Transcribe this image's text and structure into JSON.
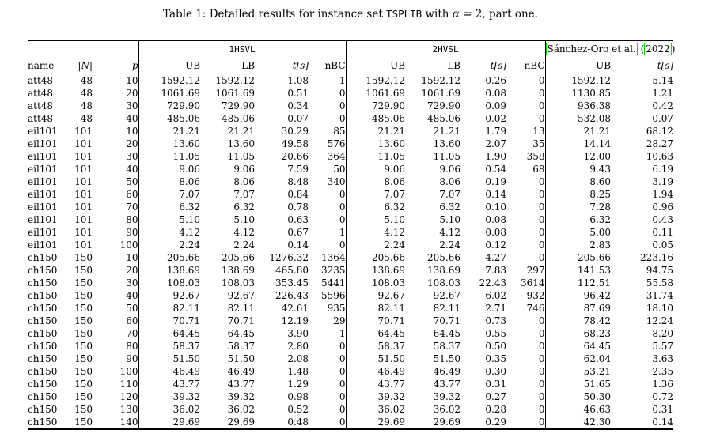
{
  "colors": {
    "link_box": "#00dd00",
    "text": "#000000",
    "background": "#ffffff"
  },
  "caption": {
    "prefix": "Table 1: Detailed results for instance set ",
    "mono": "TSPLIB",
    "mid": " with ",
    "alpha": "α",
    "suffix": " = 2, part one."
  },
  "header": {
    "group1": "1HSVL",
    "group2": "2HVSL",
    "group3": {
      "citation": "Sánchez-Oro et al.",
      "paren_open": "(",
      "year": "2022",
      "paren_close": ")"
    },
    "cols": {
      "name": "name",
      "n": "|N|",
      "p": "p",
      "ub": "UB",
      "lb": "LB",
      "t": "t[s]",
      "nbc": "nBC"
    }
  },
  "rows": [
    {
      "name": "att48",
      "n": "48",
      "p": "10",
      "h1": [
        "1592.12",
        "1592.12",
        "1.08",
        "1"
      ],
      "h2": [
        "1592.12",
        "1592.12",
        "0.26",
        "0"
      ],
      "so": [
        "1592.12",
        "5.14"
      ],
      "so_ub_bold": true
    },
    {
      "name": "att48",
      "n": "48",
      "p": "20",
      "h1": [
        "1061.69",
        "1061.69",
        "0.51",
        "0"
      ],
      "h2": [
        "1061.69",
        "1061.69",
        "0.08",
        "0"
      ],
      "so": [
        "1130.85",
        "1.21"
      ],
      "so_ub_bold": false
    },
    {
      "name": "att48",
      "n": "48",
      "p": "30",
      "h1": [
        "729.90",
        "729.90",
        "0.34",
        "0"
      ],
      "h2": [
        "729.90",
        "729.90",
        "0.09",
        "0"
      ],
      "so": [
        "936.38",
        "0.42"
      ],
      "so_ub_bold": false
    },
    {
      "name": "att48",
      "n": "48",
      "p": "40",
      "h1": [
        "485.06",
        "485.06",
        "0.07",
        "0"
      ],
      "h2": [
        "485.06",
        "485.06",
        "0.02",
        "0"
      ],
      "so": [
        "532.08",
        "0.07"
      ],
      "so_ub_bold": false
    },
    {
      "name": "eil101",
      "n": "101",
      "p": "10",
      "h1": [
        "21.21",
        "21.21",
        "30.29",
        "85"
      ],
      "h2": [
        "21.21",
        "21.21",
        "1.79",
        "13"
      ],
      "so": [
        "21.21",
        "68.12"
      ],
      "so_ub_bold": true
    },
    {
      "name": "eil101",
      "n": "101",
      "p": "20",
      "h1": [
        "13.60",
        "13.60",
        "49.58",
        "576"
      ],
      "h2": [
        "13.60",
        "13.60",
        "2.07",
        "35"
      ],
      "so": [
        "14.14",
        "28.27"
      ],
      "so_ub_bold": false
    },
    {
      "name": "eil101",
      "n": "101",
      "p": "30",
      "h1": [
        "11.05",
        "11.05",
        "20.66",
        "364"
      ],
      "h2": [
        "11.05",
        "11.05",
        "1.90",
        "358"
      ],
      "so": [
        "12.00",
        "10.63"
      ],
      "so_ub_bold": false
    },
    {
      "name": "eil101",
      "n": "101",
      "p": "40",
      "h1": [
        "9.06",
        "9.06",
        "7.59",
        "50"
      ],
      "h2": [
        "9.06",
        "9.06",
        "0.54",
        "68"
      ],
      "so": [
        "9.43",
        "6.19"
      ],
      "so_ub_bold": false
    },
    {
      "name": "eil101",
      "n": "101",
      "p": "50",
      "h1": [
        "8.06",
        "8.06",
        "8.48",
        "340"
      ],
      "h2": [
        "8.06",
        "8.06",
        "0.19",
        "0"
      ],
      "so": [
        "8.60",
        "3.19"
      ],
      "so_ub_bold": false
    },
    {
      "name": "eil101",
      "n": "101",
      "p": "60",
      "h1": [
        "7.07",
        "7.07",
        "0.84",
        "0"
      ],
      "h2": [
        "7.07",
        "7.07",
        "0.14",
        "0"
      ],
      "so": [
        "8.25",
        "1.94"
      ],
      "so_ub_bold": false
    },
    {
      "name": "eil101",
      "n": "101",
      "p": "70",
      "h1": [
        "6.32",
        "6.32",
        "0.78",
        "0"
      ],
      "h2": [
        "6.32",
        "6.32",
        "0.10",
        "0"
      ],
      "so": [
        "7.28",
        "0.96"
      ],
      "so_ub_bold": false
    },
    {
      "name": "eil101",
      "n": "101",
      "p": "80",
      "h1": [
        "5.10",
        "5.10",
        "0.63",
        "0"
      ],
      "h2": [
        "5.10",
        "5.10",
        "0.08",
        "0"
      ],
      "so": [
        "6.32",
        "0.43"
      ],
      "so_ub_bold": false
    },
    {
      "name": "eil101",
      "n": "101",
      "p": "90",
      "h1": [
        "4.12",
        "4.12",
        "0.67",
        "1"
      ],
      "h2": [
        "4.12",
        "4.12",
        "0.08",
        "0"
      ],
      "so": [
        "5.00",
        "0.11"
      ],
      "so_ub_bold": false
    },
    {
      "name": "eil101",
      "n": "101",
      "p": "100",
      "h1": [
        "2.24",
        "2.24",
        "0.14",
        "0"
      ],
      "h2": [
        "2.24",
        "2.24",
        "0.12",
        "0"
      ],
      "so": [
        "2.83",
        "0.05"
      ],
      "so_ub_bold": false
    },
    {
      "name": "ch150",
      "n": "150",
      "p": "10",
      "h1": [
        "205.66",
        "205.66",
        "1276.32",
        "1364"
      ],
      "h2": [
        "205.66",
        "205.66",
        "4.27",
        "0"
      ],
      "so": [
        "205.66",
        "223.16"
      ],
      "so_ub_bold": true
    },
    {
      "name": "ch150",
      "n": "150",
      "p": "20",
      "h1": [
        "138.69",
        "138.69",
        "465.80",
        "3235"
      ],
      "h2": [
        "138.69",
        "138.69",
        "7.83",
        "297"
      ],
      "so": [
        "141.53",
        "94.75"
      ],
      "so_ub_bold": false
    },
    {
      "name": "ch150",
      "n": "150",
      "p": "30",
      "h1": [
        "108.03",
        "108.03",
        "353.45",
        "5441"
      ],
      "h2": [
        "108.03",
        "108.03",
        "22.43",
        "3614"
      ],
      "so": [
        "112.51",
        "55.58"
      ],
      "so_ub_bold": false
    },
    {
      "name": "ch150",
      "n": "150",
      "p": "40",
      "h1": [
        "92.67",
        "92.67",
        "226.43",
        "5596"
      ],
      "h2": [
        "92.67",
        "92.67",
        "6.02",
        "932"
      ],
      "so": [
        "96.42",
        "31.74"
      ],
      "so_ub_bold": false
    },
    {
      "name": "ch150",
      "n": "150",
      "p": "50",
      "h1": [
        "82.11",
        "82.11",
        "42.61",
        "935"
      ],
      "h2": [
        "82.11",
        "82.11",
        "2.71",
        "746"
      ],
      "so": [
        "87.69",
        "18.10"
      ],
      "so_ub_bold": false
    },
    {
      "name": "ch150",
      "n": "150",
      "p": "60",
      "h1": [
        "70.71",
        "70.71",
        "12.19",
        "29"
      ],
      "h2": [
        "70.71",
        "70.71",
        "0.73",
        "0"
      ],
      "so": [
        "78.42",
        "12.24"
      ],
      "so_ub_bold": false
    },
    {
      "name": "ch150",
      "n": "150",
      "p": "70",
      "h1": [
        "64.45",
        "64.45",
        "3.90",
        "1"
      ],
      "h2": [
        "64.45",
        "64.45",
        "0.55",
        "0"
      ],
      "so": [
        "68.23",
        "8.20"
      ],
      "so_ub_bold": false
    },
    {
      "name": "ch150",
      "n": "150",
      "p": "80",
      "h1": [
        "58.37",
        "58.37",
        "2.80",
        "0"
      ],
      "h2": [
        "58.37",
        "58.37",
        "0.50",
        "0"
      ],
      "so": [
        "64.45",
        "5.57"
      ],
      "so_ub_bold": false
    },
    {
      "name": "ch150",
      "n": "150",
      "p": "90",
      "h1": [
        "51.50",
        "51.50",
        "2.08",
        "0"
      ],
      "h2": [
        "51.50",
        "51.50",
        "0.35",
        "0"
      ],
      "so": [
        "62.04",
        "3.63"
      ],
      "so_ub_bold": false
    },
    {
      "name": "ch150",
      "n": "150",
      "p": "100",
      "h1": [
        "46.49",
        "46.49",
        "1.48",
        "0"
      ],
      "h2": [
        "46.49",
        "46.49",
        "0.30",
        "0"
      ],
      "so": [
        "53.21",
        "2.35"
      ],
      "so_ub_bold": false
    },
    {
      "name": "ch150",
      "n": "150",
      "p": "110",
      "h1": [
        "43.77",
        "43.77",
        "1.29",
        "0"
      ],
      "h2": [
        "43.77",
        "43.77",
        "0.31",
        "0"
      ],
      "so": [
        "51.65",
        "1.36"
      ],
      "so_ub_bold": false
    },
    {
      "name": "ch150",
      "n": "150",
      "p": "120",
      "h1": [
        "39.32",
        "39.32",
        "0.98",
        "0"
      ],
      "h2": [
        "39.32",
        "39.32",
        "0.27",
        "0"
      ],
      "so": [
        "50.30",
        "0.72"
      ],
      "so_ub_bold": false
    },
    {
      "name": "ch150",
      "n": "150",
      "p": "130",
      "h1": [
        "36.02",
        "36.02",
        "0.52",
        "0"
      ],
      "h2": [
        "36.02",
        "36.02",
        "0.28",
        "0"
      ],
      "so": [
        "46.63",
        "0.31"
      ],
      "so_ub_bold": false
    },
    {
      "name": "ch150",
      "n": "150",
      "p": "140",
      "h1": [
        "29.69",
        "29.69",
        "0.48",
        "0"
      ],
      "h2": [
        "29.69",
        "29.69",
        "0.29",
        "0"
      ],
      "so": [
        "42.30",
        "0.14"
      ],
      "so_ub_bold": false
    }
  ]
}
